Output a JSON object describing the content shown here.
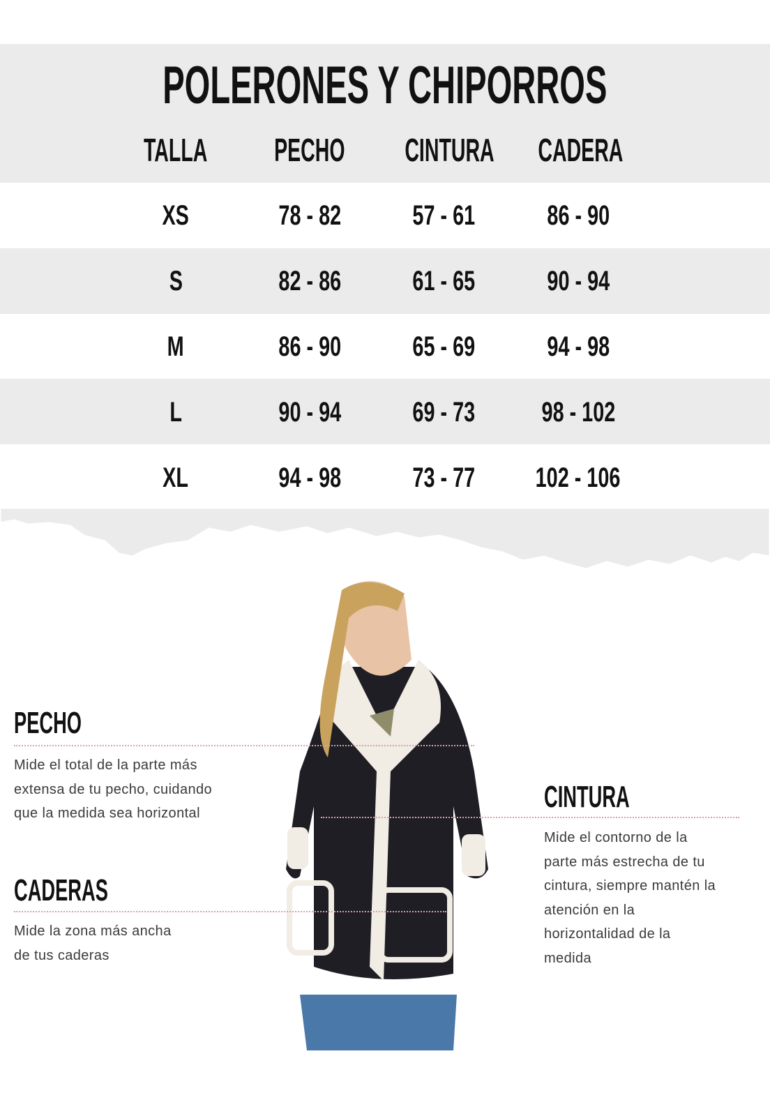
{
  "title": "POLERONES Y CHIPORROS",
  "table": {
    "headers": [
      "TALLA",
      "PECHO",
      "CINTURA",
      "CADERA"
    ],
    "rows": [
      [
        "XS",
        "78 - 82",
        "57 - 61",
        "86 - 90"
      ],
      [
        "S",
        "82 - 86",
        "61 - 65",
        "90 - 94"
      ],
      [
        "M",
        "86 - 90",
        "65 - 69",
        "94 - 98"
      ],
      [
        "L",
        "90 - 94",
        "69 - 73",
        "98 - 102"
      ],
      [
        "XL",
        "94 - 98",
        "73 - 77",
        "102 - 106"
      ]
    ]
  },
  "guide": {
    "pecho": {
      "title": "PECHO",
      "lines": [
        "Mide el total de la parte más",
        "extensa de tu pecho, cuidando",
        "que la medida sea horizontal"
      ]
    },
    "caderas": {
      "title": "CADERAS",
      "lines": [
        "Mide la zona más ancha",
        "de tus caderas"
      ]
    },
    "cintura": {
      "title": "CINTURA",
      "lines": [
        "Mide el contorno de la",
        "parte más estrecha de tu",
        "cintura, siempre mantén la",
        "atención en  la",
        "horizontalidad de la",
        "medida"
      ]
    }
  },
  "colors": {
    "band": "#ebebeb",
    "dotted_line": "#d9a0a8",
    "text": "#111111"
  }
}
